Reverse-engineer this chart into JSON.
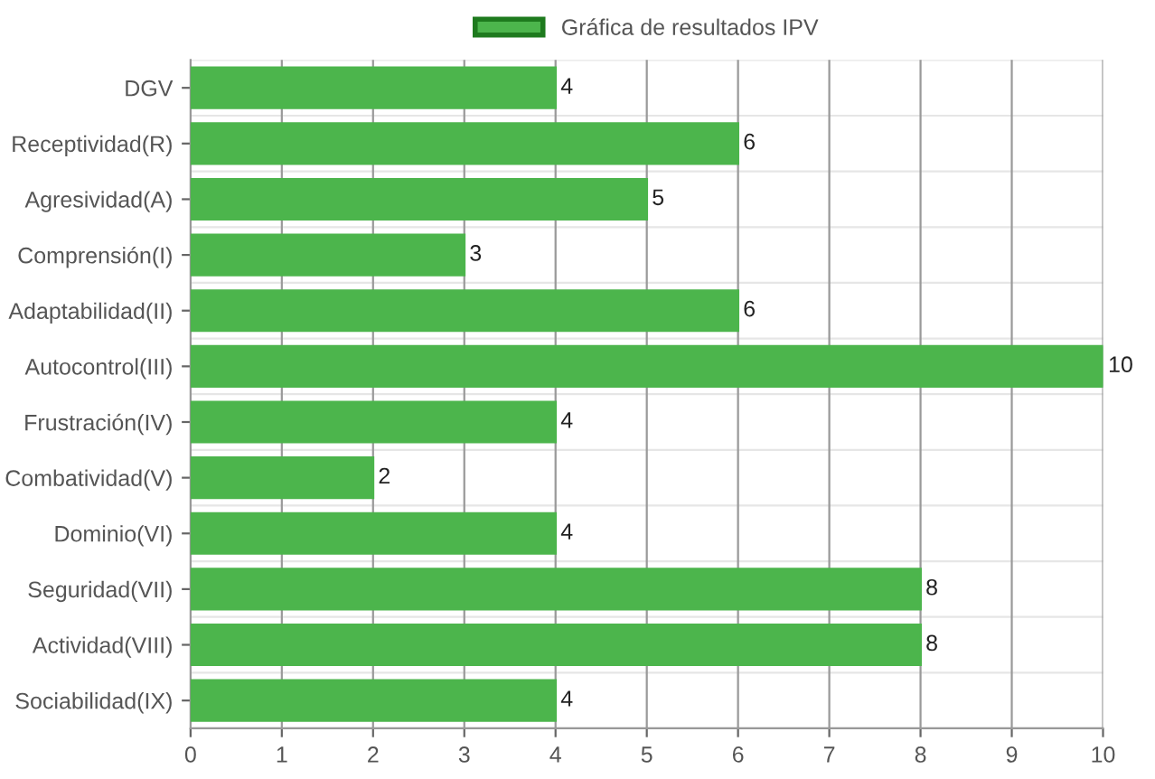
{
  "chart_data": {
    "type": "bar",
    "orientation": "horizontal",
    "categories": [
      "DGV",
      "Receptividad(R)",
      "Agresividad(A)",
      "Comprensión(I)",
      "Adaptabilidad(II)",
      "Autocontrol(III)",
      "Frustración(IV)",
      "Combatividad(V)",
      "Dominio(VI)",
      "Seguridad(VII)",
      "Actividad(VIII)",
      "Sociabilidad(IX)"
    ],
    "series": [
      {
        "name": "Gráfica de resultados IPV",
        "color": "#4cb54c",
        "values": [
          4,
          6,
          5,
          3,
          6,
          10,
          4,
          2,
          4,
          8,
          8,
          4
        ]
      }
    ],
    "xlim": [
      0,
      10
    ],
    "xticks": [
      0,
      1,
      2,
      3,
      4,
      5,
      6,
      7,
      8,
      9,
      10
    ],
    "grid": true,
    "legend": "top",
    "data_labels": true
  }
}
